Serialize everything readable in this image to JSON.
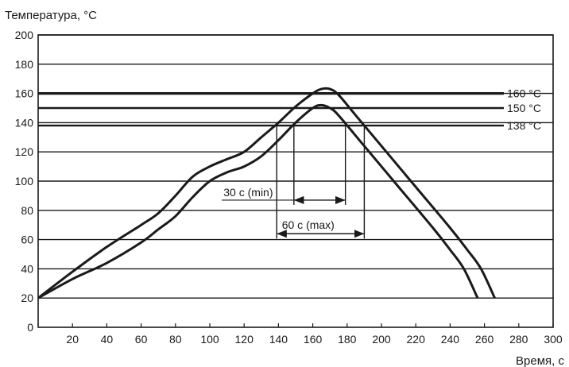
{
  "chart_data": {
    "type": "line",
    "title": "",
    "ylabel": "Температура, °C",
    "xlabel": "Время, с",
    "xlim": [
      0,
      300
    ],
    "ylim": [
      0,
      200
    ],
    "x_ticks": [
      20,
      40,
      60,
      80,
      100,
      120,
      140,
      160,
      180,
      200,
      220,
      240,
      260,
      280,
      300
    ],
    "y_ticks": [
      0,
      20,
      40,
      60,
      80,
      100,
      120,
      140,
      160,
      180,
      200
    ],
    "grid": "horizontal",
    "series": [
      {
        "points": [
          [
            0,
            20
          ],
          [
            20,
            38
          ],
          [
            40,
            55
          ],
          [
            60,
            70
          ],
          [
            70,
            78
          ],
          [
            80,
            90
          ],
          [
            90,
            103
          ],
          [
            100,
            110
          ],
          [
            110,
            115
          ],
          [
            120,
            120
          ],
          [
            130,
            130
          ],
          [
            140,
            140
          ],
          [
            150,
            151
          ],
          [
            160,
            160
          ],
          [
            165,
            163
          ],
          [
            170,
            163
          ],
          [
            175,
            159
          ],
          [
            185,
            145
          ],
          [
            200,
            124
          ],
          [
            220,
            96
          ],
          [
            240,
            68
          ],
          [
            250,
            53
          ],
          [
            258,
            40
          ],
          [
            266,
            20
          ]
        ]
      },
      {
        "points": [
          [
            0,
            20
          ],
          [
            20,
            33
          ],
          [
            40,
            44
          ],
          [
            60,
            58
          ],
          [
            70,
            67
          ],
          [
            80,
            76
          ],
          [
            90,
            89
          ],
          [
            100,
            100
          ],
          [
            110,
            106
          ],
          [
            120,
            110
          ],
          [
            130,
            117
          ],
          [
            140,
            128
          ],
          [
            150,
            140
          ],
          [
            160,
            150
          ],
          [
            165,
            152
          ],
          [
            170,
            150
          ],
          [
            175,
            145
          ],
          [
            190,
            124
          ],
          [
            210,
            96
          ],
          [
            230,
            68
          ],
          [
            240,
            53
          ],
          [
            248,
            40
          ],
          [
            256,
            20
          ]
        ]
      }
    ],
    "reference_lines": [
      {
        "y": 160,
        "label": "160 °C"
      },
      {
        "y": 150,
        "label": "150 °C"
      },
      {
        "y": 138,
        "label": "138 °C"
      }
    ],
    "annotations": [
      {
        "label": "30 с (min)",
        "x_from": 149,
        "x_to": 179,
        "y": 87
      },
      {
        "label": "60 с (max)",
        "x_from": 139,
        "x_to": 190,
        "y": 64
      }
    ],
    "line_colors": {
      "axis": "#1a1a1a",
      "series": "#1a1a1a",
      "grid": "#1a1a1a"
    }
  }
}
